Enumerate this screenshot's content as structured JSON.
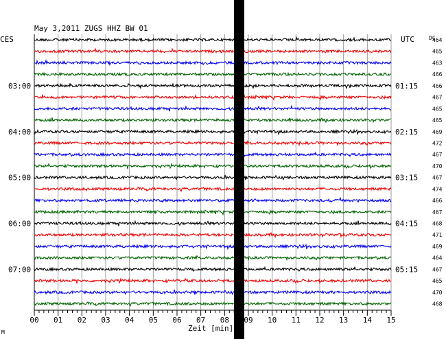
{
  "chart_data": {
    "type": "line",
    "title": "May 3,2011   ZUGS HHZ BW 01",
    "left_label": "CES",
    "right_label": "UTC",
    "dc_label": "DC",
    "xlabel": "Zeit [min]",
    "xlim": [
      0,
      15
    ],
    "x_ticks": [
      "00",
      "01",
      "02",
      "03",
      "04",
      "05",
      "06",
      "07",
      "08",
      "09",
      "10",
      "11",
      "12",
      "13",
      "14",
      "15"
    ],
    "grid": true,
    "left_hours": [
      "03:00",
      "04:00",
      "05:00",
      "06:00",
      "07:00"
    ],
    "right_hours": [
      "01:15",
      "02:15",
      "03:15",
      "04:15",
      "05:15"
    ],
    "series_colors": [
      "#000000",
      "#ee0000",
      "#0000ee",
      "#006400"
    ],
    "dc_values": [
      464,
      465,
      463,
      466,
      466,
      467,
      465,
      465,
      469,
      472,
      467,
      470,
      467,
      474,
      466,
      467,
      468,
      471,
      469,
      464,
      467,
      465,
      470,
      468
    ],
    "corner_mark": "M"
  }
}
